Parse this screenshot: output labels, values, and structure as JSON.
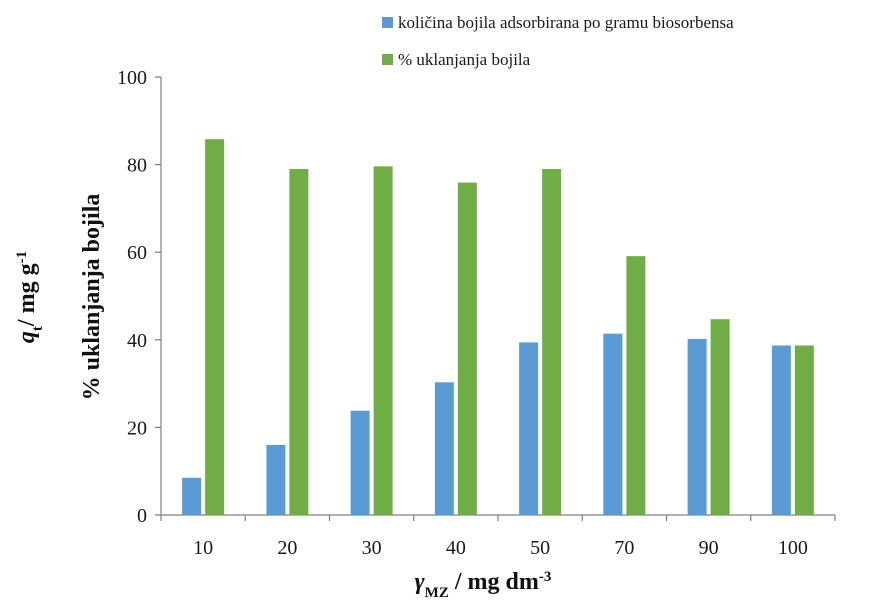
{
  "chart_data": {
    "type": "bar",
    "categories": [
      "10",
      "20",
      "30",
      "40",
      "50",
      "70",
      "90",
      "100"
    ],
    "series": [
      {
        "name": "količina bojila adsorbirana po gramu biosorbensa",
        "color": "#5b9bd5",
        "values": [
          8.5,
          16.0,
          23.8,
          30.3,
          39.4,
          41.4,
          40.2,
          38.7
        ]
      },
      {
        "name": "% uklanjanja bojila",
        "color": "#70ad47",
        "values": [
          85.8,
          79.0,
          79.6,
          75.9,
          79.0,
          59.1,
          44.7,
          38.7
        ]
      }
    ],
    "ylim": [
      0,
      100
    ],
    "yticks": [
      "0",
      "20",
      "40",
      "60",
      "80",
      "100"
    ],
    "ylabel_line1": {
      "italic": "q",
      "sub": "t",
      "rest": "/ mg g",
      "sup": "-1"
    },
    "ylabel_line2": "% uklanjanja  bojila",
    "xlabel": {
      "italic": "γ",
      "sub": "MZ",
      "rest": " / mg dm",
      "sup": "-3"
    },
    "legend_position": "top-right",
    "grid": false
  }
}
